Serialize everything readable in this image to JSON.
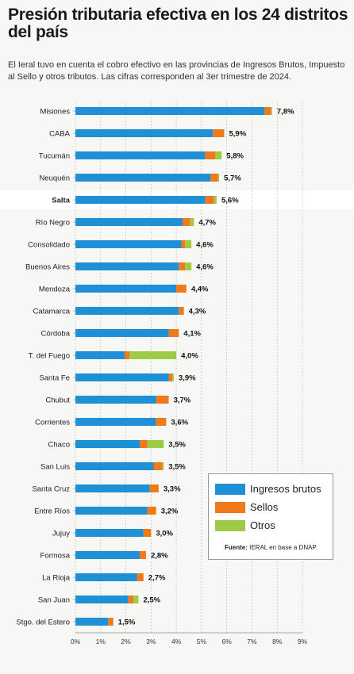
{
  "title": "Presión tributaria efectiva en los 24 distritos del país",
  "subtitle": "El Ieral tuvo en cuenta el cobro efectivo en las provincias de Ingresos Brutos, Impuesto al Sello y otros tributos. Las cifras corresponden al 3er trimestre de 2024.",
  "colors": {
    "ingresos": "#1f8fd6",
    "sellos": "#f07a1a",
    "otros": "#9dcb45",
    "highlight_band": "#ffffff",
    "background": "#f7f7f5"
  },
  "legend": {
    "items": [
      {
        "label": "Ingresos brutos",
        "color": "#1f8fd6"
      },
      {
        "label": "Sellos",
        "color": "#f07a1a"
      },
      {
        "label": "Otros",
        "color": "#9dcb45"
      }
    ],
    "source_prefix": "Fuente:",
    "source_text": "IERAL en base a DNAP."
  },
  "chart_data": {
    "type": "bar",
    "orientation": "horizontal",
    "stacked": true,
    "title": "Presión tributaria efectiva en los 24 distritos del país",
    "xlim": [
      0,
      9
    ],
    "x_ticks": [
      "0%",
      "1%",
      "2%",
      "3%",
      "4%",
      "5%",
      "6%",
      "7%",
      "8%",
      "9%"
    ],
    "grid": true,
    "legend_position": "bottom-right",
    "highlighted_category": "Salta",
    "categories": [
      "Misiones",
      "CABA",
      "Tucumán",
      "Neuquén",
      "Salta",
      "Río Negro",
      "Consolidado",
      "Buenos Aires",
      "Mendoza",
      "Catamarca",
      "Córdoba",
      "T. del Fuego",
      "Santa Fe",
      "Chubut",
      "Corrientes",
      "Chaco",
      "San Luis",
      "Santa Cruz",
      "Entre Ríos",
      "Jujuy",
      "Formosa",
      "La Rioja",
      "San Juan",
      "Stgo. del Estero"
    ],
    "total_labels": [
      "7,8%",
      "5,9%",
      "5,8%",
      "5,7%",
      "5,6%",
      "4,7%",
      "4,6%",
      "4,6%",
      "4,4%",
      "4,3%",
      "4,1%",
      "4,0%",
      "3,9%",
      "3,7%",
      "3,6%",
      "3,5%",
      "3,5%",
      "3,3%",
      "3,2%",
      "3,0%",
      "2,8%",
      "2,7%",
      "2,5%",
      "1,5%"
    ],
    "series": [
      {
        "name": "Ingresos brutos",
        "values": [
          7.5,
          5.45,
          5.15,
          5.35,
          5.15,
          4.25,
          4.2,
          4.1,
          4.0,
          4.1,
          3.7,
          1.95,
          3.7,
          3.2,
          3.2,
          2.55,
          3.1,
          2.95,
          2.85,
          2.7,
          2.55,
          2.45,
          2.1,
          1.3
        ]
      },
      {
        "name": "Sellos",
        "values": [
          0.25,
          0.45,
          0.4,
          0.3,
          0.35,
          0.3,
          0.15,
          0.25,
          0.4,
          0.2,
          0.4,
          0.2,
          0.15,
          0.5,
          0.4,
          0.3,
          0.35,
          0.35,
          0.35,
          0.3,
          0.25,
          0.25,
          0.2,
          0.2
        ]
      },
      {
        "name": "Otros",
        "values": [
          0.05,
          0.0,
          0.25,
          0.05,
          0.1,
          0.15,
          0.25,
          0.25,
          0.0,
          0.0,
          0.0,
          1.85,
          0.05,
          0.0,
          0.0,
          0.65,
          0.05,
          0.0,
          0.0,
          0.0,
          0.0,
          0.0,
          0.2,
          0.0
        ]
      }
    ]
  }
}
